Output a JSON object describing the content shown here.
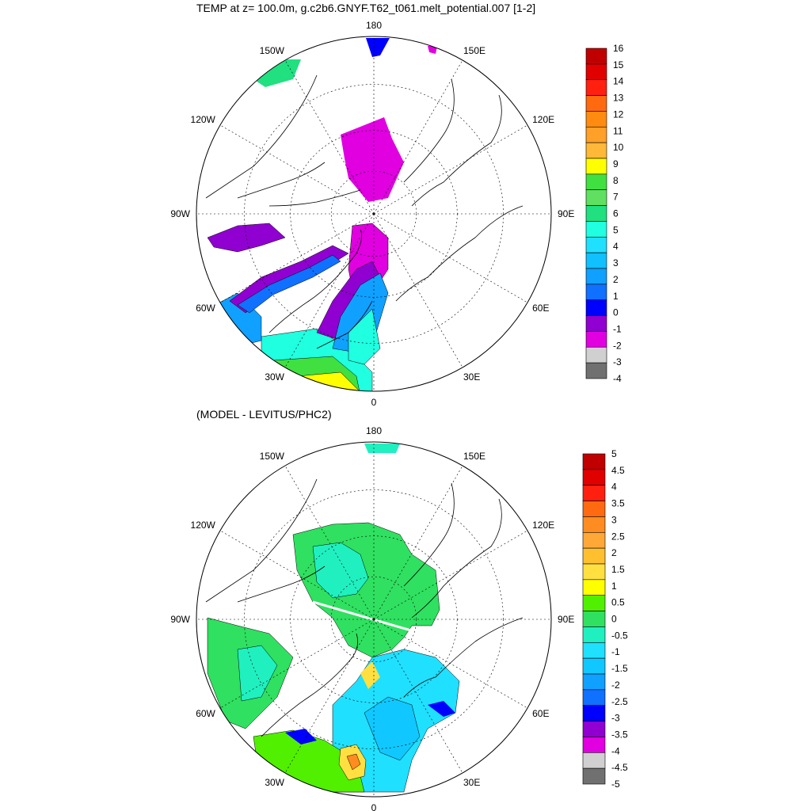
{
  "titles": {
    "top": "TEMP at z= 100.0m, g.c2b6.GNYF.T62_t061.melt_potential.007 [1-2]",
    "bottom": "(MODEL - LEVITUS/PHC2)"
  },
  "chart_data": [
    {
      "type": "heatmap",
      "projection": "north-polar-stereographic",
      "title": "TEMP at z= 100.0m, g.c2b6.GNYF.T62_t061.melt_potential.007 [1-2]",
      "longitude_labels": [
        "180",
        "150E",
        "120E",
        "90E",
        "60E",
        "30E",
        "0",
        "30W",
        "60W",
        "90W",
        "120W",
        "150W"
      ],
      "colorbar": {
        "labels": [
          "16",
          "15",
          "14",
          "13",
          "12",
          "11",
          "10",
          "9",
          "8",
          "7",
          "6",
          "5",
          "4",
          "3",
          "2",
          "1",
          "0",
          "-1",
          "-2",
          "-3",
          "-4"
        ],
        "colors": [
          "#c00000",
          "#e00000",
          "#ff2010",
          "#ff6a10",
          "#ff8c10",
          "#ffa028",
          "#ffb838",
          "#ffff00",
          "#40e040",
          "#60e060",
          "#20e080",
          "#20ffe0",
          "#20e0ff",
          "#10c0ff",
          "#10a0ff",
          "#1070ff",
          "#0000ff",
          "#9000d0",
          "#e000e0",
          "#d0d0d0",
          "#707070"
        ]
      },
      "shaded_regions": [
        {
          "value_range": "-2 to -1",
          "color": "#e000e0"
        },
        {
          "value_range": "-1 to 0",
          "color": "#9000d0"
        },
        {
          "value_range": "0 to 1",
          "color": "#0000ff"
        },
        {
          "value_range": "1 to 4",
          "color": "#10a0ff"
        },
        {
          "value_range": "4 to 6",
          "color": "#20ffe0"
        },
        {
          "value_range": "6 to 8",
          "color": "#40e040"
        },
        {
          "value_range": "8 to 9",
          "color": "#ffff00"
        }
      ]
    },
    {
      "type": "heatmap",
      "projection": "north-polar-stereographic",
      "title": "(MODEL - LEVITUS/PHC2)",
      "longitude_labels": [
        "180",
        "150E",
        "120E",
        "90E",
        "60E",
        "30E",
        "0",
        "30W",
        "60W",
        "90W",
        "120W",
        "150W"
      ],
      "colorbar": {
        "labels": [
          "5",
          "4.5",
          "4",
          "3.5",
          "3",
          "2.5",
          "2",
          "1.5",
          "1",
          "0.5",
          "0",
          "-0.5",
          "-1",
          "-1.5",
          "-2",
          "-2.5",
          "-3",
          "-3.5",
          "-4",
          "-4.5",
          "-5"
        ],
        "colors": [
          "#c00000",
          "#e00000",
          "#ff2010",
          "#ff6a10",
          "#ff8c20",
          "#ffa838",
          "#ffc030",
          "#ffe040",
          "#ffff00",
          "#50f000",
          "#30e060",
          "#20f0c0",
          "#20e0ff",
          "#10c8ff",
          "#10a0ff",
          "#1070ff",
          "#0000ff",
          "#9000d0",
          "#e000e0",
          "#d0d0d0",
          "#707070"
        ]
      },
      "shaded_regions": [
        {
          "value_range": "0 to 0.5",
          "color": "#30e060"
        },
        {
          "value_range": "-0.5 to 0",
          "color": "#20f0c0"
        },
        {
          "value_range": "-1 to -0.5",
          "color": "#20e0ff"
        },
        {
          "value_range": "-1.5 to -1",
          "color": "#10c8ff"
        },
        {
          "value_range": "-2.5 to -2",
          "color": "#1070ff"
        },
        {
          "value_range": "-3 to -2.5",
          "color": "#0000ff"
        },
        {
          "value_range": "0.5 to 1",
          "color": "#50f000"
        },
        {
          "value_range": "1 to 2",
          "color": "#ffe040"
        },
        {
          "value_range": "2 to 3",
          "color": "#ff8c20"
        }
      ]
    }
  ]
}
